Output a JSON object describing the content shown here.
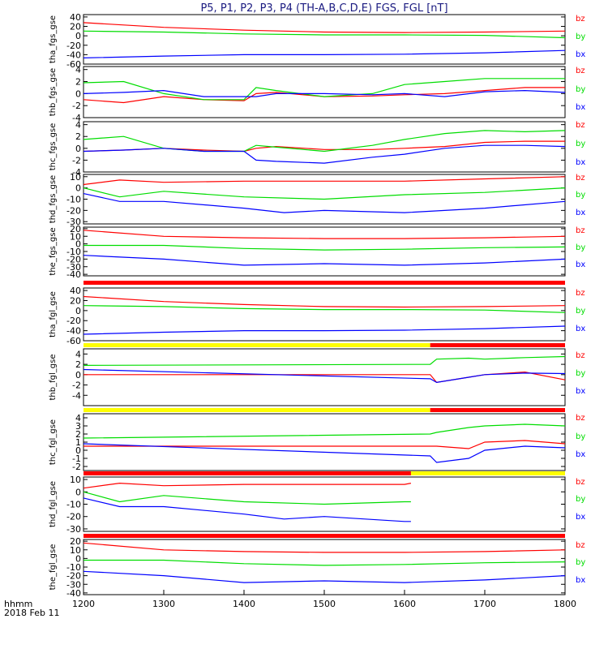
{
  "title": "P5, P1, P2, P3, P4 (TH-A,B,C,D,E) FGS, FGL [nT]",
  "footer": {
    "line1": "hhmm",
    "line2": "2018 Feb 11"
  },
  "colors": {
    "bx": "#0000ff",
    "by": "#00dd00",
    "bz": "#ff0000",
    "bar_yellow": "#ffff00",
    "bar_red": "#ff0000",
    "bar_black": "#000000",
    "title": "#1a1a80"
  },
  "chart_data": {
    "type": "line",
    "xlabel": "hhmm",
    "x_ticks": [
      "1200",
      "1300",
      "1400",
      "1500",
      "1600",
      "1700",
      "1800"
    ],
    "xlim": [
      1200,
      1800
    ],
    "components": [
      "bz",
      "by",
      "bx"
    ],
    "panels": [
      {
        "ylabel": "tha_fgs_gse",
        "ylim": [
          -60,
          45
        ],
        "yticks": [
          "40",
          "20",
          "0",
          "-20",
          "-40",
          "-60"
        ],
        "series": [
          {
            "name": "bz",
            "x": [
              1200,
              1300,
              1400,
              1500,
              1600,
              1700,
              1800
            ],
            "values": [
              28,
              18,
              12,
              8,
              7,
              8,
              10
            ]
          },
          {
            "name": "by",
            "x": [
              1200,
              1300,
              1400,
              1500,
              1600,
              1700,
              1800
            ],
            "values": [
              10,
              8,
              4,
              2,
              2,
              1,
              -4
            ]
          },
          {
            "name": "bx",
            "x": [
              1200,
              1300,
              1400,
              1500,
              1600,
              1700,
              1800
            ],
            "values": [
              -47,
              -43,
              -40,
              -40,
              -39,
              -36,
              -31
            ]
          }
        ]
      },
      {
        "ylabel": "thb_fgs_gse",
        "ylim": [
          -4,
          4.5
        ],
        "yticks": [
          "4",
          "2",
          "0",
          "-2",
          "-4"
        ],
        "series": [
          {
            "name": "bz",
            "x": [
              1200,
              1250,
              1300,
              1350,
              1400,
              1415,
              1440,
              1500,
              1560,
              1600,
              1650,
              1700,
              1750,
              1800
            ],
            "values": [
              -1,
              -1.5,
              -0.5,
              -1,
              -1.2,
              0,
              0.2,
              -0.5,
              -0.4,
              -0.2,
              0,
              0.5,
              1,
              1
            ]
          },
          {
            "name": "by",
            "x": [
              1200,
              1250,
              1300,
              1350,
              1400,
              1415,
              1440,
              1500,
              1560,
              1600,
              1650,
              1700,
              1750,
              1800
            ],
            "values": [
              1.8,
              2,
              0,
              -1,
              -1,
              1,
              0.5,
              -0.5,
              0,
              1.5,
              2,
              2.5,
              2.5,
              2.5
            ]
          },
          {
            "name": "bx",
            "x": [
              1200,
              1250,
              1300,
              1350,
              1400,
              1415,
              1440,
              1500,
              1560,
              1600,
              1650,
              1700,
              1750,
              1800
            ],
            "values": [
              0,
              0.2,
              0.5,
              -0.5,
              -0.5,
              -0.5,
              0,
              0,
              -0.2,
              0,
              -0.5,
              0.3,
              0.5,
              0.2
            ]
          }
        ]
      },
      {
        "ylabel": "thc_fgs_gse",
        "ylim": [
          -4,
          4.5
        ],
        "yticks": [
          "4",
          "2",
          "0",
          "-2",
          "-4"
        ],
        "series": [
          {
            "name": "bz",
            "x": [
              1200,
              1250,
              1300,
              1350,
              1400,
              1415,
              1440,
              1500,
              1560,
              1600,
              1650,
              1700,
              1750,
              1800
            ],
            "values": [
              -0.5,
              -0.3,
              0,
              -0.3,
              -0.5,
              0,
              0.3,
              -0.2,
              -0.2,
              0,
              0.3,
              1,
              1.2,
              1.2
            ]
          },
          {
            "name": "by",
            "x": [
              1200,
              1250,
              1300,
              1350,
              1400,
              1415,
              1440,
              1500,
              1560,
              1600,
              1650,
              1700,
              1750,
              1800
            ],
            "values": [
              1.5,
              2,
              0,
              -0.5,
              -0.5,
              0.5,
              0.2,
              -0.5,
              0.5,
              1.5,
              2.5,
              3,
              2.8,
              3
            ]
          },
          {
            "name": "bx",
            "x": [
              1200,
              1250,
              1300,
              1350,
              1400,
              1415,
              1440,
              1500,
              1560,
              1600,
              1650,
              1700,
              1750,
              1800
            ],
            "values": [
              -0.5,
              -0.3,
              0,
              -0.5,
              -0.5,
              -2,
              -2.2,
              -2.5,
              -1.5,
              -1,
              0,
              0.5,
              0.5,
              0.3
            ]
          }
        ]
      },
      {
        "ylabel": "thd_fgs_gse",
        "ylim": [
          -32,
          12
        ],
        "yticks": [
          "10",
          "0",
          "-10",
          "-20",
          "-30"
        ],
        "series": [
          {
            "name": "bz",
            "x": [
              1200,
              1245,
              1300,
              1400,
              1500,
              1600,
              1700,
              1800
            ],
            "values": [
              3,
              7,
              5,
              6,
              6,
              6,
              8,
              10
            ]
          },
          {
            "name": "by",
            "x": [
              1200,
              1245,
              1300,
              1400,
              1500,
              1600,
              1700,
              1800
            ],
            "values": [
              0,
              -8,
              -3,
              -8,
              -10,
              -6,
              -4,
              0
            ]
          },
          {
            "name": "bx",
            "x": [
              1200,
              1245,
              1300,
              1400,
              1450,
              1500,
              1600,
              1700,
              1800
            ],
            "values": [
              -5,
              -12,
              -12,
              -18,
              -22,
              -20,
              -22,
              -18,
              -12
            ]
          }
        ]
      },
      {
        "ylabel": "the_fgs_gse",
        "ylim": [
          -42,
          22
        ],
        "yticks": [
          "20",
          "10",
          "0",
          "-10",
          "-20",
          "-30",
          "-40"
        ],
        "series": [
          {
            "name": "bz",
            "x": [
              1200,
              1300,
              1400,
              1500,
              1600,
              1700,
              1800
            ],
            "values": [
              18,
              10,
              8,
              7,
              7,
              8,
              10
            ]
          },
          {
            "name": "by",
            "x": [
              1200,
              1300,
              1400,
              1500,
              1600,
              1700,
              1800
            ],
            "values": [
              -2,
              -2,
              -6,
              -8,
              -7,
              -5,
              -4
            ]
          },
          {
            "name": "bx",
            "x": [
              1200,
              1300,
              1400,
              1500,
              1600,
              1700,
              1800
            ],
            "values": [
              -15,
              -20,
              -28,
              -26,
              -28,
              -25,
              -20
            ]
          }
        ]
      },
      {
        "ylabel": "tha_fgl_gse",
        "ylim": [
          -60,
          45
        ],
        "yticks": [
          "40",
          "20",
          "0",
          "-20",
          "-40",
          "-60"
        ],
        "series": [
          {
            "name": "bz",
            "x": [
              1200,
              1300,
              1400,
              1500,
              1600,
              1700,
              1800
            ],
            "values": [
              28,
              18,
              12,
              8,
              7,
              8,
              10
            ]
          },
          {
            "name": "by",
            "x": [
              1200,
              1300,
              1400,
              1500,
              1600,
              1700,
              1800
            ],
            "values": [
              10,
              8,
              4,
              2,
              2,
              1,
              -4
            ]
          },
          {
            "name": "bx",
            "x": [
              1200,
              1300,
              1400,
              1500,
              1600,
              1700,
              1800
            ],
            "values": [
              -47,
              -43,
              -40,
              -40,
              -39,
              -36,
              -31
            ]
          }
        ]
      },
      {
        "ylabel": "thb_fgl_gse",
        "ylim": [
          -6,
          5
        ],
        "yticks": [
          "4",
          "2",
          "0",
          "-2",
          "-4"
        ],
        "series": [
          {
            "name": "bz",
            "x": [
              1200,
              1632,
              1640,
              1680,
              1700,
              1750,
              1800
            ],
            "values": [
              0,
              0,
              -1.5,
              -0.5,
              0,
              0.5,
              -1
            ]
          },
          {
            "name": "by",
            "x": [
              1200,
              1632,
              1640,
              1680,
              1700,
              1750,
              1800
            ],
            "values": [
              1.8,
              2,
              3,
              3.2,
              3,
              3.3,
              3.5
            ]
          },
          {
            "name": "bx",
            "x": [
              1200,
              1632,
              1640,
              1680,
              1700,
              1750,
              1800
            ],
            "values": [
              1,
              -0.8,
              -1.5,
              -0.5,
              0,
              0.3,
              0.2
            ]
          }
        ]
      },
      {
        "ylabel": "thc_fgl_gse",
        "ylim": [
          -2.5,
          4.5
        ],
        "yticks": [
          "4",
          "3",
          "2",
          "1",
          "0",
          "-1",
          "-2"
        ],
        "series": [
          {
            "name": "bz",
            "x": [
              1200,
              1632,
              1640,
              1680,
              1700,
              1750,
              1800
            ],
            "values": [
              0.5,
              0.5,
              0.5,
              0.2,
              1,
              1.2,
              0.8
            ]
          },
          {
            "name": "by",
            "x": [
              1200,
              1632,
              1640,
              1680,
              1700,
              1750,
              1800
            ],
            "values": [
              1.5,
              2,
              2.2,
              2.8,
              3,
              3.2,
              3
            ]
          },
          {
            "name": "bx",
            "x": [
              1200,
              1632,
              1640,
              1680,
              1700,
              1750,
              1800
            ],
            "values": [
              0.8,
              -0.7,
              -1.5,
              -1,
              0,
              0.5,
              0.3
            ]
          }
        ]
      },
      {
        "ylabel": "thd_fgl_gse",
        "ylim": [
          -32,
          12
        ],
        "yticks": [
          "10",
          "0",
          "-10",
          "-20",
          "-30"
        ],
        "series": [
          {
            "name": "bz",
            "x": [
              1200,
              1245,
              1300,
              1400,
              1500,
              1600,
              1608
            ],
            "values": [
              3,
              7,
              5,
              6,
              6,
              6,
              7
            ]
          },
          {
            "name": "by",
            "x": [
              1200,
              1245,
              1300,
              1400,
              1500,
              1600,
              1608
            ],
            "values": [
              0,
              -8,
              -3,
              -8,
              -10,
              -8,
              -8
            ]
          },
          {
            "name": "bx",
            "x": [
              1200,
              1245,
              1300,
              1400,
              1450,
              1500,
              1600,
              1608
            ],
            "values": [
              -5,
              -12,
              -12,
              -18,
              -22,
              -20,
              -24,
              -24
            ]
          }
        ]
      },
      {
        "ylabel": "the_fgl_gse",
        "ylim": [
          -42,
          22
        ],
        "yticks": [
          "20",
          "10",
          "0",
          "-10",
          "-20",
          "-30",
          "-40"
        ],
        "series": [
          {
            "name": "bz",
            "x": [
              1200,
              1300,
              1400,
              1500,
              1600,
              1700,
              1800
            ],
            "values": [
              18,
              10,
              8,
              7,
              7,
              8,
              10
            ]
          },
          {
            "name": "by",
            "x": [
              1200,
              1300,
              1400,
              1500,
              1600,
              1700,
              1800
            ],
            "values": [
              -2,
              -2,
              -6,
              -8,
              -7,
              -5,
              -4
            ]
          },
          {
            "name": "bx",
            "x": [
              1200,
              1300,
              1400,
              1500,
              1600,
              1700,
              1800
            ],
            "values": [
              -15,
              -20,
              -28,
              -26,
              -28,
              -25,
              -20
            ]
          }
        ]
      }
    ],
    "mode_bars": [
      {
        "after_panel": 4,
        "segments": [
          {
            "color": "red",
            "x": [
              1200,
              1800
            ]
          }
        ]
      },
      {
        "after_panel": 5,
        "segments": [
          {
            "color": "yellow",
            "x": [
              1200,
              1632
            ]
          },
          {
            "color": "red",
            "x": [
              1632,
              1800
            ]
          }
        ]
      },
      {
        "after_panel": 6,
        "segments": [
          {
            "color": "yellow",
            "x": [
              1200,
              1632
            ]
          },
          {
            "color": "red",
            "x": [
              1632,
              1800
            ]
          }
        ]
      },
      {
        "after_panel": 7,
        "segments": [
          {
            "color": "red",
            "x": [
              1200,
              1608
            ]
          },
          {
            "color": "yellow",
            "x": [
              1608,
              1800
            ]
          }
        ]
      },
      {
        "after_panel": 8,
        "segments": [
          {
            "color": "red",
            "x": [
              1200,
              1800
            ]
          }
        ]
      }
    ]
  }
}
